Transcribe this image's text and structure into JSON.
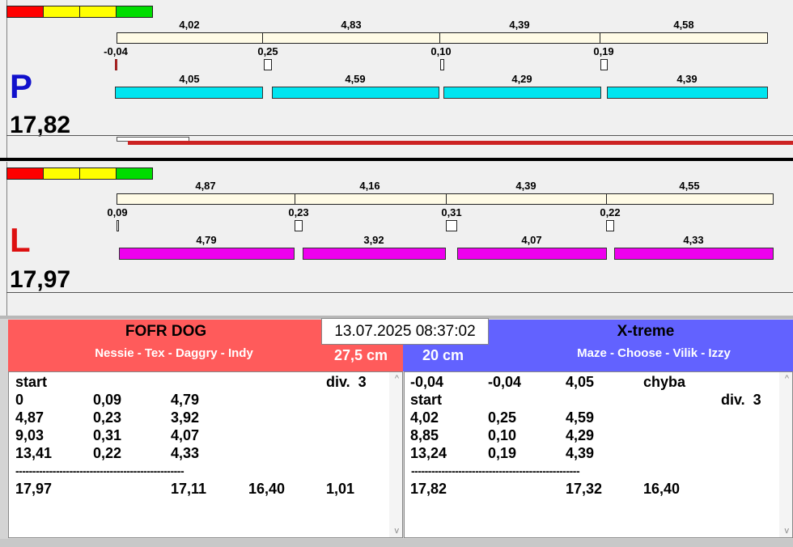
{
  "colors": {
    "red": "#ff0000",
    "yellow": "#ffff00",
    "green": "#00dd00",
    "lane_p": "#1010cc",
    "lane_l": "#dd1010",
    "bar_p": "#00e5f0",
    "bar_l": "#ee00ee",
    "team_left": "#ff5b5b",
    "team_right": "#6262ff"
  },
  "lane_p": {
    "letter": "P",
    "total": "17,82",
    "run_times": [
      "4,02",
      "4,83",
      "4,39",
      "4,58"
    ],
    "gaps": [
      "-0,04",
      "0,25",
      "0,10",
      "0,19"
    ],
    "dog_times": [
      "4,05",
      "4,59",
      "4,29",
      "4,39"
    ]
  },
  "lane_l": {
    "letter": "L",
    "total": "17,97",
    "run_times": [
      "4,87",
      "4,16",
      "4,39",
      "4,55"
    ],
    "gaps": [
      "0,09",
      "0,23",
      "0,31",
      "0,22"
    ],
    "dog_times": [
      "4,79",
      "3,92",
      "4,07",
      "4,33"
    ]
  },
  "datetime": "13.07.2025 08:37:02",
  "team_left": {
    "name": "FOFR DOG",
    "dogs": "Nessie - Tex - Daggry - Indy",
    "height": "27,5 cm",
    "rows": [
      [
        "start",
        "",
        "",
        "",
        "div.  3"
      ],
      [
        "0",
        "0,09",
        "4,79",
        "",
        ""
      ],
      [
        "4,87",
        "0,23",
        "3,92",
        "",
        ""
      ],
      [
        "9,03",
        "0,31",
        "4,07",
        "",
        ""
      ],
      [
        "13,41",
        "0,22",
        "4,33",
        "",
        ""
      ]
    ],
    "divider": "--------------------------------------------------",
    "totals": [
      "17,97",
      "",
      "17,11",
      "16,40",
      "1,01"
    ]
  },
  "team_right": {
    "name": "X-treme",
    "dogs": "Maze - Choose - Vilik - Izzy",
    "height": "20 cm",
    "rows": [
      [
        "-0,04",
        "-0,04",
        "4,05",
        "chyba",
        ""
      ],
      [
        "start",
        "",
        "",
        "",
        "div.  3"
      ],
      [
        "4,02",
        "0,25",
        "4,59",
        "",
        ""
      ],
      [
        "8,85",
        "0,10",
        "4,29",
        "",
        ""
      ],
      [
        "13,24",
        "0,19",
        "4,39",
        "",
        ""
      ]
    ],
    "divider": "--------------------------------------------------",
    "totals": [
      "17,82",
      "",
      "17,32",
      "16,40",
      ""
    ]
  }
}
